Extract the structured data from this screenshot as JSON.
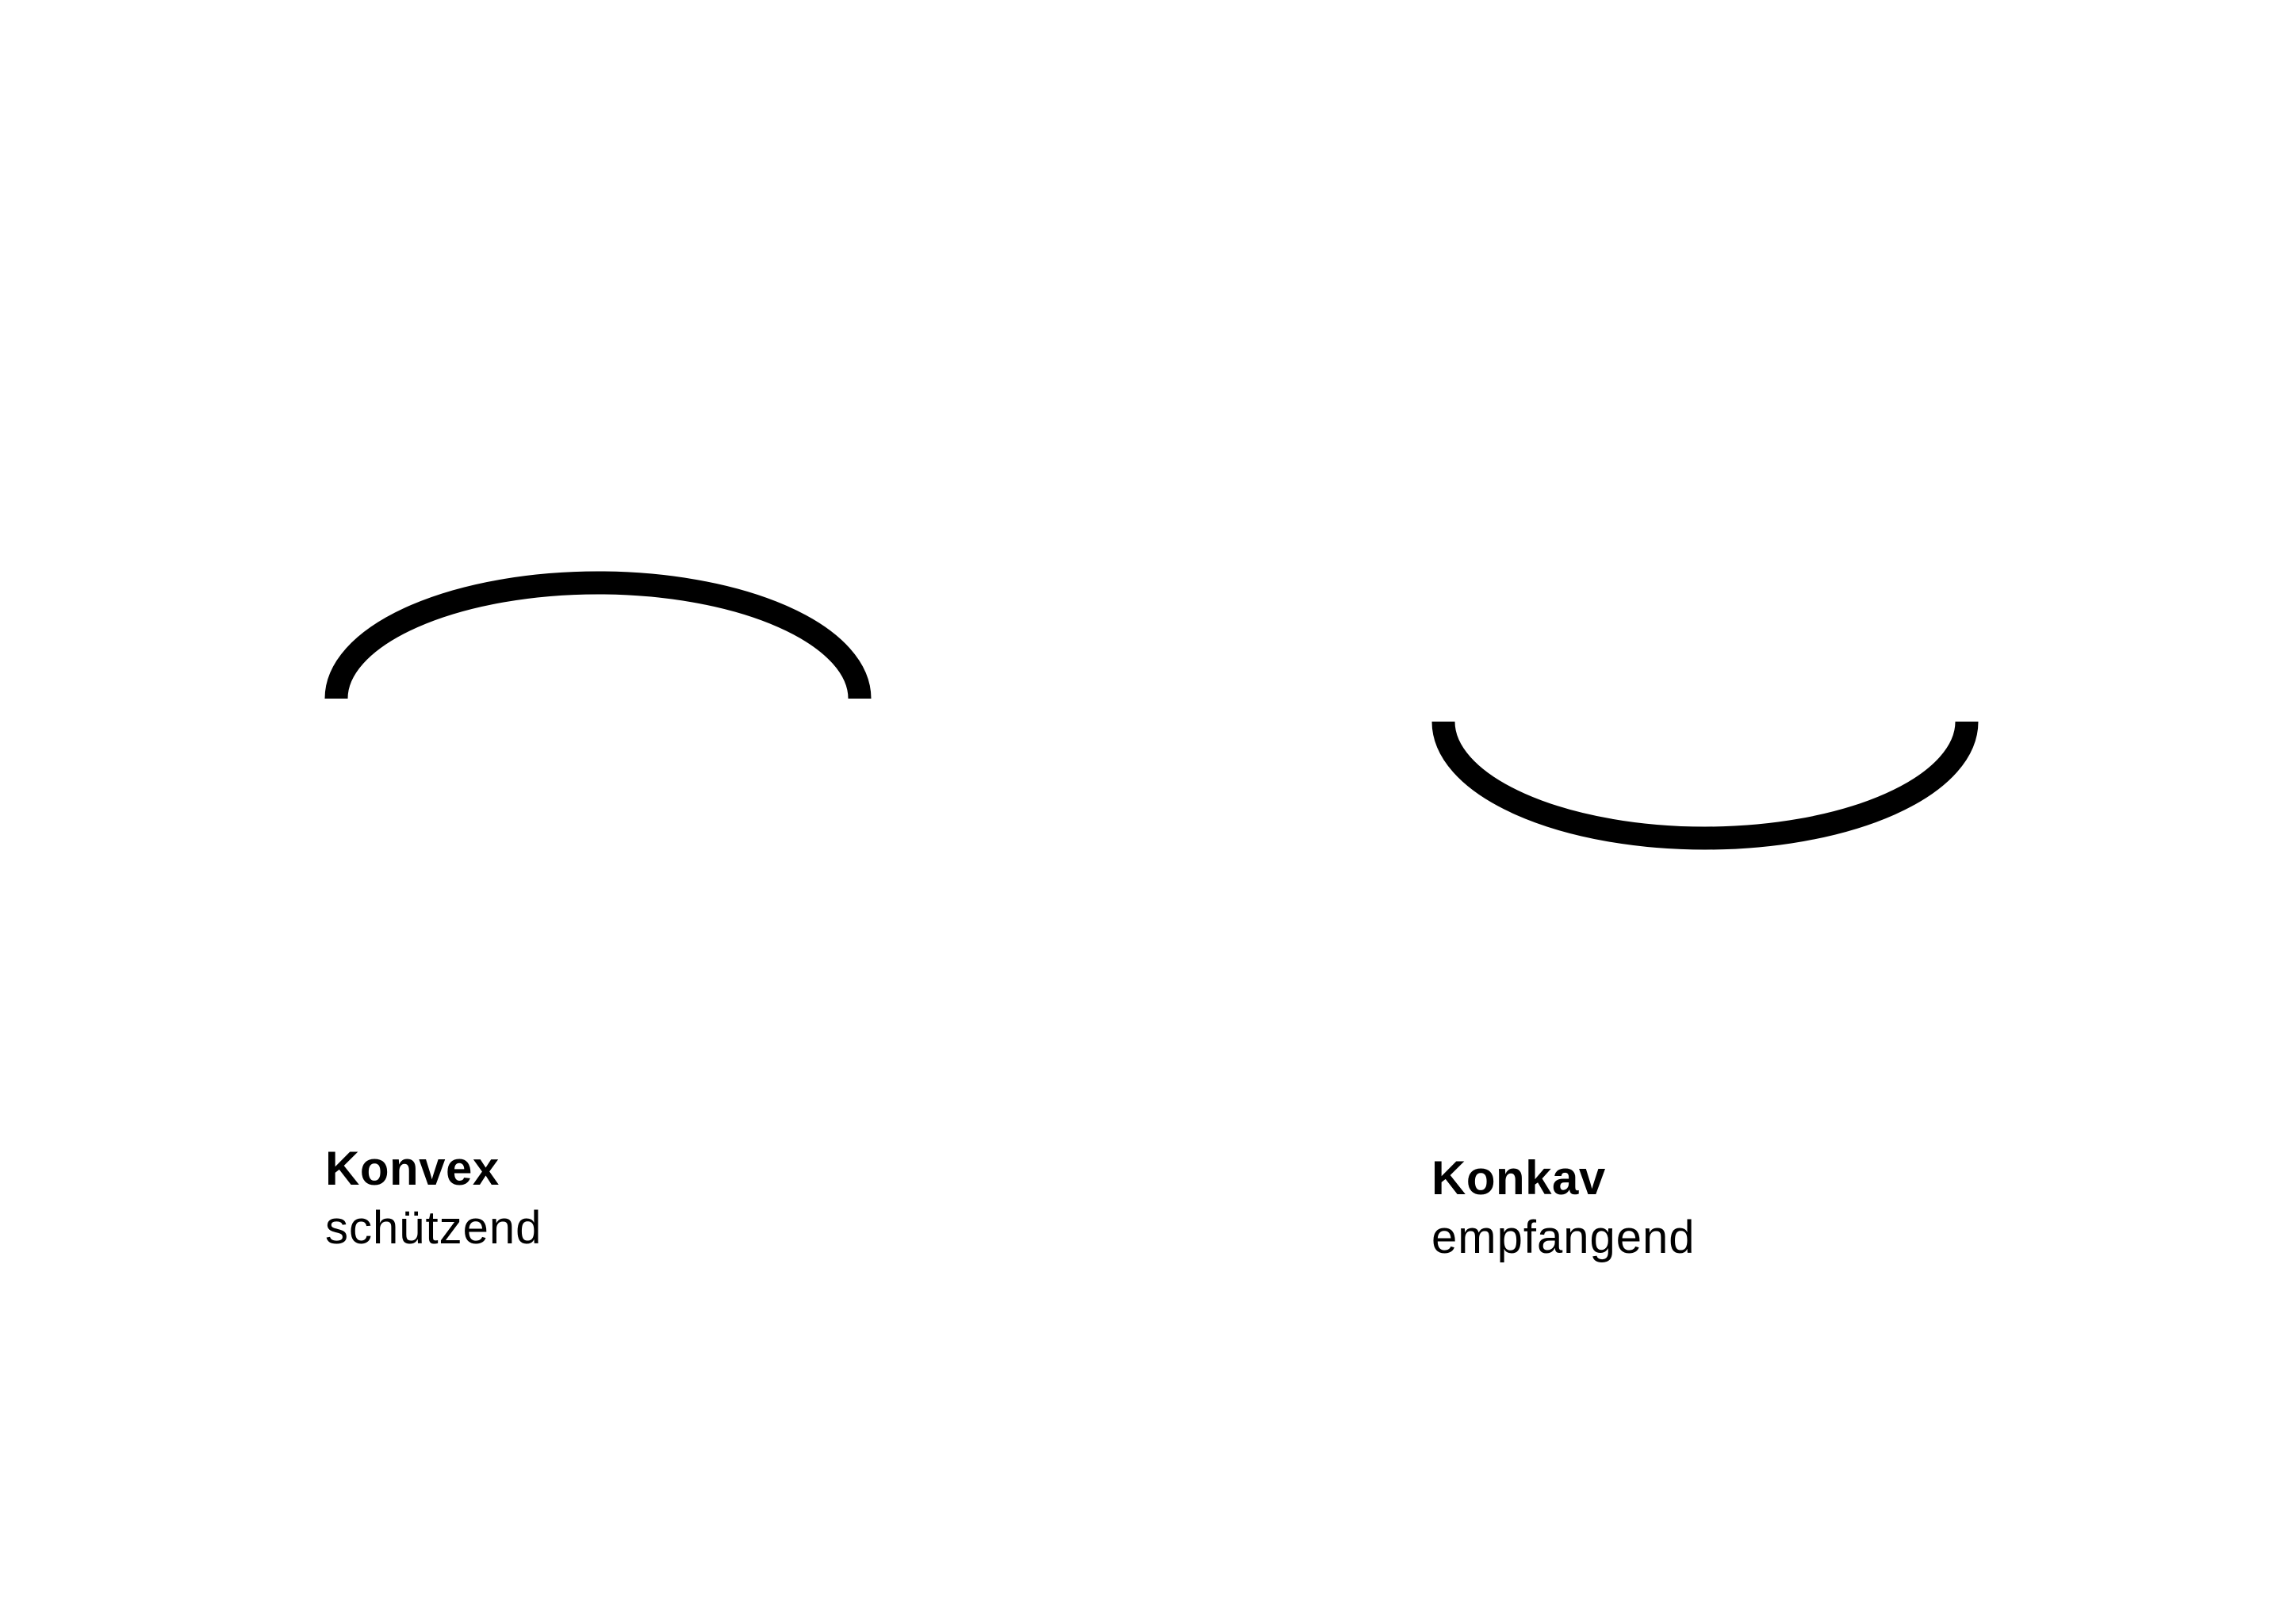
{
  "figure": {
    "convex": {
      "title": "Konvex",
      "subtitle": "schützend"
    },
    "concave": {
      "title": "Konkav",
      "subtitle": "empfangend"
    },
    "colors": {
      "stroke": "#000000",
      "background": "#ffffff"
    }
  }
}
